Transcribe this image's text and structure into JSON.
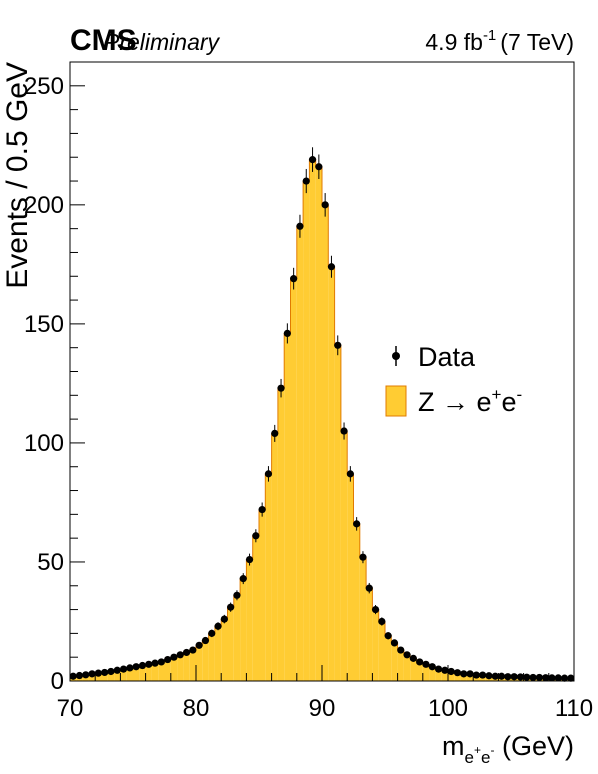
{
  "chart_data": {
    "type": "histogram",
    "header": {
      "experiment": "CMS",
      "status": "Preliminary",
      "lumi_value": "4.9 fb",
      "lumi_exponent": "-1",
      "energy": "(7 TeV)"
    },
    "xlabel": {
      "main": "m",
      "sub_e1": "e",
      "sup_plus": "+",
      "sub_e2": "e",
      "sup_minus": "-",
      "unit": " (GeV)"
    },
    "ylabel": "Events / 0.5 GeV",
    "xlim": [
      70,
      110
    ],
    "ylim": [
      0,
      260
    ],
    "x_ticks": [
      70,
      80,
      90,
      100,
      110
    ],
    "y_ticks": [
      0,
      50,
      100,
      150,
      200,
      250
    ],
    "bin_width": 0.5,
    "legend": {
      "position": "right",
      "data_label": "Data",
      "mc_main": "Z → e",
      "mc_sup1": "+",
      "mc_e": "e",
      "mc_sup2": "-"
    },
    "colors": {
      "fill": "#ffcc33",
      "line": "#e07b00",
      "marker": "#000000"
    },
    "x": [
      70.25,
      70.75,
      71.25,
      71.75,
      72.25,
      72.75,
      73.25,
      73.75,
      74.25,
      74.75,
      75.25,
      75.75,
      76.25,
      76.75,
      77.25,
      77.75,
      78.25,
      78.75,
      79.25,
      79.75,
      80.25,
      80.75,
      81.25,
      81.75,
      82.25,
      82.75,
      83.25,
      83.75,
      84.25,
      84.75,
      85.25,
      85.75,
      86.25,
      86.75,
      87.25,
      87.75,
      88.25,
      88.75,
      89.25,
      89.75,
      90.25,
      90.75,
      91.25,
      91.75,
      92.25,
      92.75,
      93.25,
      93.75,
      94.25,
      94.75,
      95.25,
      95.75,
      96.25,
      96.75,
      97.25,
      97.75,
      98.25,
      98.75,
      99.25,
      99.75,
      100.25,
      100.75,
      101.25,
      101.75,
      102.25,
      102.75,
      103.25,
      103.75,
      104.25,
      104.75,
      105.25,
      105.75,
      106.25,
      106.75,
      107.25,
      107.75,
      108.25,
      108.75,
      109.25,
      109.75
    ],
    "series": [
      {
        "name": "Data",
        "style": "points",
        "values": [
          2,
          2.3,
          2.6,
          3,
          3.3,
          3.6,
          4,
          4.5,
          5,
          5.5,
          6,
          6.5,
          7,
          7.5,
          8,
          9,
          10,
          11,
          12,
          13,
          15,
          17,
          20,
          23,
          26,
          31,
          36,
          43,
          51,
          61,
          72,
          87,
          104,
          123,
          146,
          169,
          191,
          210,
          219,
          216,
          200,
          174,
          141,
          105,
          87,
          66,
          52,
          39,
          30,
          25,
          19,
          16,
          13,
          11,
          9.5,
          8,
          7,
          6,
          5,
          4.5,
          4,
          3.5,
          3,
          3,
          2.5,
          2.5,
          2.2,
          2,
          2,
          1.8,
          1.8,
          1.7,
          1.6,
          1.5,
          1.5,
          1.4,
          1.3,
          1.3,
          1.2,
          1.2
        ]
      },
      {
        "name": "Z → e⁺e⁻",
        "style": "filled-histogram",
        "values": [
          2,
          2.3,
          2.6,
          3,
          3.3,
          3.6,
          4,
          4.5,
          5,
          5.5,
          6,
          6.5,
          7,
          7.5,
          8,
          9,
          10,
          11,
          12,
          13,
          15,
          17,
          20,
          23,
          26,
          31,
          36,
          43,
          51,
          61,
          72,
          87,
          104,
          123,
          146,
          169,
          191,
          210,
          219,
          216,
          200,
          174,
          141,
          105,
          87,
          66,
          52,
          39,
          30,
          25,
          19,
          16,
          13,
          11,
          9.5,
          8,
          7,
          6,
          5,
          4.5,
          4,
          3.5,
          3,
          3,
          2.5,
          2.5,
          2.2,
          2,
          2,
          1.8,
          1.8,
          1.7,
          1.6,
          1.5,
          1.5,
          1.4,
          1.3,
          1.3,
          1.2,
          1.2
        ]
      }
    ]
  }
}
